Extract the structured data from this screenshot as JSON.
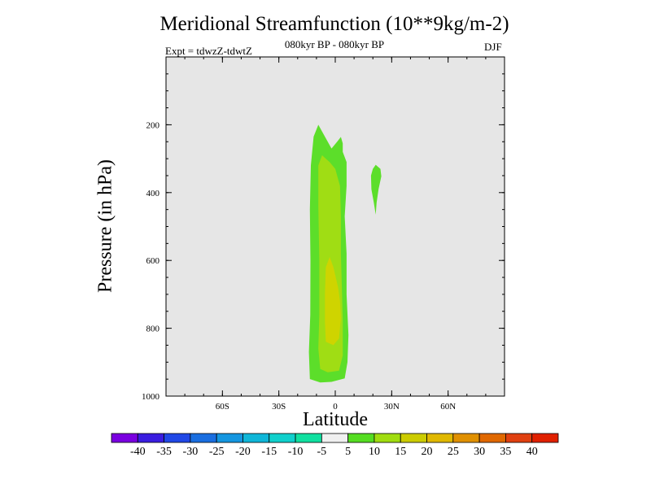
{
  "chart_data": {
    "type": "contour",
    "title": "Meridional Streamfunction (10**9kg/m-2)",
    "subtitle": "080kyr BP - 080kyr BP",
    "left_label": "Expt = tdwzZ-tdwtZ",
    "right_label": "DJF",
    "xlabel": "Latitude",
    "ylabel": "Pressure (in hPa)",
    "xlim": [
      -90,
      90
    ],
    "ylim": [
      1000,
      0
    ],
    "x_ticks": [
      {
        "value": -60,
        "label": "60S"
      },
      {
        "value": -30,
        "label": "30S"
      },
      {
        "value": 0,
        "label": "0"
      },
      {
        "value": 30,
        "label": "30N"
      },
      {
        "value": 60,
        "label": "60N"
      }
    ],
    "y_ticks": [
      {
        "value": 200,
        "label": "200"
      },
      {
        "value": 400,
        "label": "400"
      },
      {
        "value": 600,
        "label": "600"
      },
      {
        "value": 800,
        "label": "800"
      },
      {
        "value": 1000,
        "label": "1000"
      }
    ],
    "background_color": "#e6e6e6",
    "contour_levels": [
      -40,
      -35,
      -30,
      -25,
      -20,
      -15,
      -10,
      -5,
      5,
      10,
      15,
      20,
      25,
      30,
      35,
      40
    ],
    "colorbar_colors": [
      "#7a00e0",
      "#3a1de0",
      "#2048e6",
      "#1a6ee0",
      "#1596e0",
      "#0fb6d8",
      "#10d0cc",
      "#10e0a0",
      "#f0f0f0",
      "#55dd22",
      "#a0dd10",
      "#cccc00",
      "#e0b800",
      "#e09000",
      "#e06800",
      "#e04010",
      "#e02000"
    ],
    "regions": [
      {
        "level": "5 to 10",
        "color": "#5cde2a",
        "points": [
          [
            -13.5,
            950
          ],
          [
            -8,
            960
          ],
          [
            -2,
            958
          ],
          [
            5,
            948
          ],
          [
            6.5,
            900
          ],
          [
            7,
            820
          ],
          [
            6,
            700
          ],
          [
            6,
            580
          ],
          [
            5,
            470
          ],
          [
            6,
            380
          ],
          [
            6,
            310
          ],
          [
            4,
            280
          ],
          [
            4,
            255
          ],
          [
            3,
            236
          ],
          [
            1,
            250
          ],
          [
            -2,
            270
          ],
          [
            -6,
            230
          ],
          [
            -9,
            200
          ],
          [
            -11.5,
            235
          ],
          [
            -13,
            320
          ],
          [
            -13.5,
            450
          ],
          [
            -13.2,
            600
          ],
          [
            -13.3,
            760
          ],
          [
            -14,
            870
          ]
        ]
      },
      {
        "level": "5 to 10",
        "color": "#5cde2a",
        "points": [
          [
            19,
            350
          ],
          [
            20,
            330
          ],
          [
            21.5,
            318
          ],
          [
            24,
            330
          ],
          [
            24.5,
            352
          ],
          [
            23,
            390
          ],
          [
            22,
            430
          ],
          [
            21.5,
            465
          ],
          [
            20.5,
            430
          ],
          [
            19.2,
            390
          ]
        ]
      },
      {
        "level": "10 to 15",
        "color": "#a0dd14",
        "points": [
          [
            -8,
            920
          ],
          [
            -4,
            930
          ],
          [
            2,
            925
          ],
          [
            4,
            880
          ],
          [
            4,
            780
          ],
          [
            3.5,
            680
          ],
          [
            3,
            580
          ],
          [
            3,
            470
          ],
          [
            2.5,
            380
          ],
          [
            0,
            330
          ],
          [
            -3,
            310
          ],
          [
            -5,
            300
          ],
          [
            -7,
            290
          ],
          [
            -9,
            320
          ],
          [
            -9,
            440
          ],
          [
            -8.5,
            600
          ],
          [
            -8.5,
            760
          ],
          [
            -9,
            860
          ]
        ]
      },
      {
        "level": "15 to 20",
        "color": "#cfd400",
        "points": [
          [
            -5,
            840
          ],
          [
            -1,
            850
          ],
          [
            2,
            830
          ],
          [
            3,
            770
          ],
          [
            2.5,
            720
          ],
          [
            1.5,
            680
          ],
          [
            -1,
            620
          ],
          [
            -3,
            590
          ],
          [
            -5,
            620
          ],
          [
            -5.5,
            700
          ],
          [
            -5.5,
            780
          ]
        ]
      }
    ]
  }
}
